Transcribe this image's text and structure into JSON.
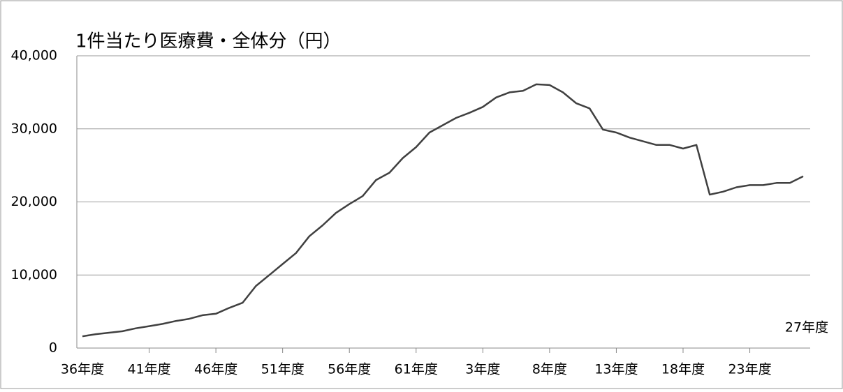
{
  "chart_data": {
    "type": "line",
    "title": "1件当たり医療費・全体分（円）",
    "categories": [
      "36年度",
      null,
      null,
      null,
      null,
      "41年度",
      null,
      null,
      null,
      null,
      "46年度",
      null,
      null,
      null,
      null,
      "51年度",
      null,
      null,
      null,
      null,
      "56年度",
      null,
      null,
      null,
      null,
      "61年度",
      null,
      null,
      null,
      null,
      "3年度",
      null,
      null,
      null,
      null,
      "8年度",
      null,
      null,
      null,
      null,
      "13年度",
      null,
      null,
      null,
      null,
      "18年度",
      null,
      null,
      null,
      null,
      "23年度",
      null,
      null,
      null,
      "27年度"
    ],
    "series": [
      {
        "color": "#404040",
        "values": [
          1600,
          1900,
          2100,
          2300,
          2700,
          3000,
          3300,
          3700,
          4000,
          4500,
          4700,
          5500,
          6200,
          8500,
          10000,
          11500,
          13000,
          15300,
          16800,
          18500,
          19700,
          20800,
          23000,
          24000,
          26000,
          27500,
          29500,
          30500,
          31500,
          32200,
          33000,
          34300,
          35000,
          35200,
          36100,
          36000,
          35000,
          33500,
          32800,
          29900,
          29500,
          28800,
          28300,
          27800,
          27800,
          27300,
          27800,
          21000,
          21400,
          22000,
          22300,
          22300,
          22600,
          22600,
          23500
        ]
      }
    ],
    "ylim": [
      0,
      40000
    ],
    "yticks": [
      0,
      {
        "value": 10000,
        "label": "10,000"
      },
      {
        "value": 20000,
        "label": "20,000"
      },
      {
        "value": 30000,
        "label": "30,000"
      },
      {
        "value": 40000,
        "label": "40,000"
      }
    ],
    "grid": true
  }
}
